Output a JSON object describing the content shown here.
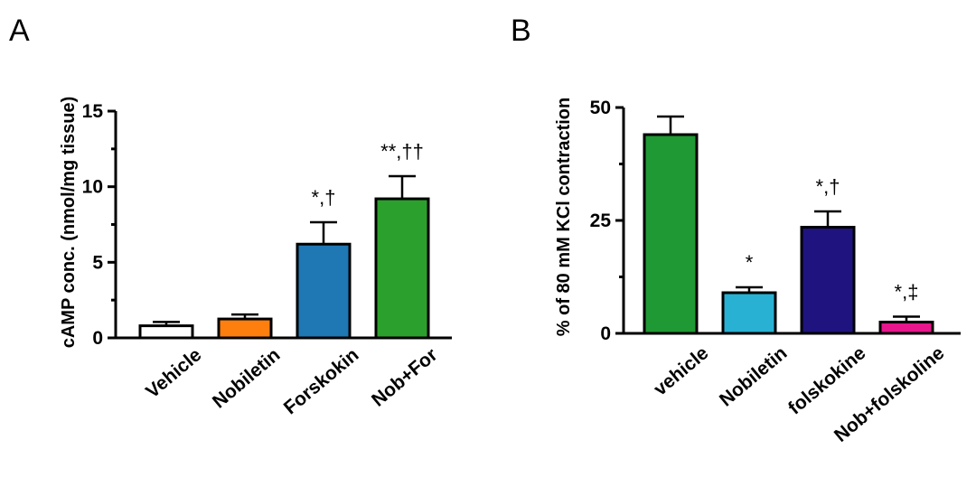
{
  "chart_data": [
    {
      "type": "bar",
      "panel_label": "A",
      "title": "",
      "xlabel": "",
      "ylabel": "cAMP conc. (nmol/mg tissue)",
      "ylim": [
        0,
        15
      ],
      "yticks": [
        0,
        5,
        10,
        15
      ],
      "categories": [
        "Vehicle",
        "Nobiletin",
        "Forskokin",
        "Nob+For"
      ],
      "values": [
        0.8,
        1.25,
        6.2,
        9.2
      ],
      "errors": [
        0.25,
        0.3,
        1.45,
        1.5
      ],
      "annotations": [
        "",
        "",
        "*,†",
        "**,††"
      ],
      "colors": [
        "#ffffff",
        "#ff7f0e",
        "#1f77b4",
        "#2ca02c"
      ]
    },
    {
      "type": "bar",
      "panel_label": "B",
      "title": "",
      "xlabel": "",
      "ylabel": "% of 80 mM KCl contraction",
      "ylim": [
        0,
        50
      ],
      "yticks": [
        0,
        25,
        50
      ],
      "categories": [
        "vehicle",
        "Nobiletin",
        "folskokine",
        "Nob+folskoline"
      ],
      "values": [
        44,
        9,
        23.5,
        2.5
      ],
      "errors": [
        4,
        1.2,
        3.5,
        1.2
      ],
      "annotations": [
        "",
        "*",
        "*,†",
        "*,‡"
      ],
      "colors": [
        "#1f9934",
        "#29b1d3",
        "#1f137f",
        "#e8168c"
      ]
    }
  ]
}
